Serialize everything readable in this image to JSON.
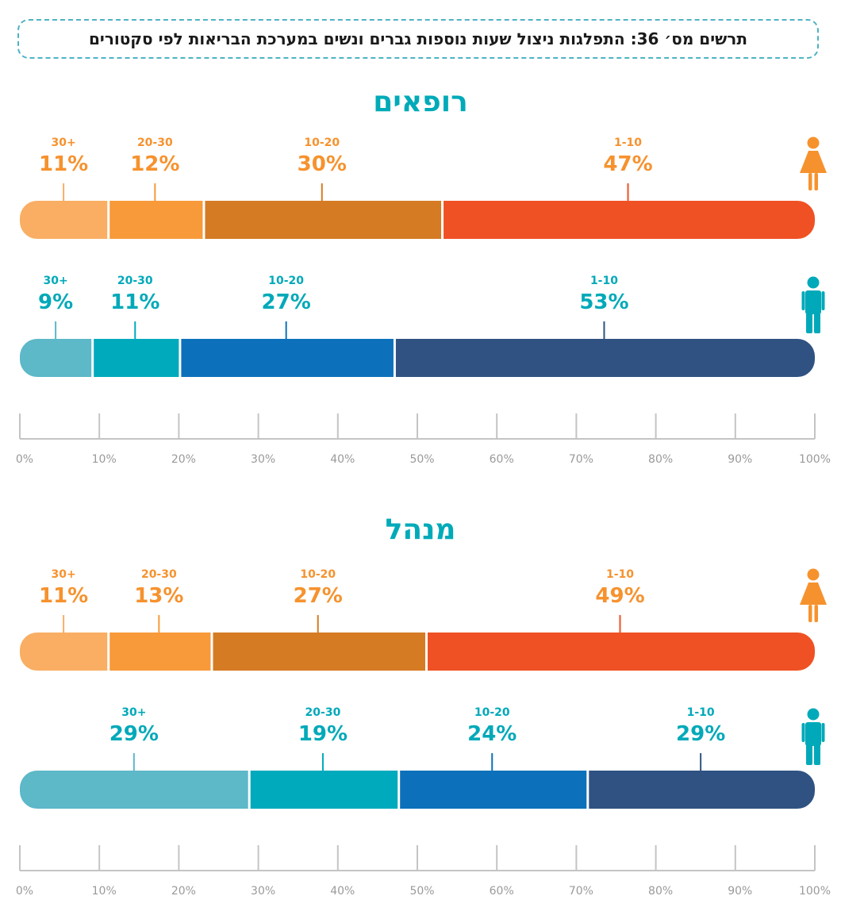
{
  "title": "תרשים מס׳ 36: התפלגות ניצול שעות נוספות גברים ונשים במערכת הבריאות לפי סקטורים",
  "colors": {
    "women": [
      "#ef5124",
      "#d57b24",
      "#f89a3a",
      "#f9ae63"
    ],
    "men": [
      "#2f5282",
      "#0c71ba",
      "#00aabd",
      "#5db8c8"
    ],
    "women_text": "#f6922e",
    "men_text": "#00a9b9",
    "axis": "#c4c4c4",
    "title_border": "#4fb3c4"
  },
  "chart_data": {
    "type": "bar",
    "orientation": "horizontal-stacked",
    "categories": [
      "1-10",
      "10-20",
      "20-30",
      "30+"
    ],
    "xlim": [
      0,
      100
    ],
    "x_tick_labels": [
      "0%",
      "10%",
      "20%",
      "30%",
      "40%",
      "50%",
      "60%",
      "70%",
      "80%",
      "90%",
      "100%"
    ],
    "grid": false,
    "sections": [
      {
        "title": "רופאים",
        "series": [
          {
            "group": "women",
            "icon": "woman-icon",
            "values": [
              47,
              30,
              12,
              11
            ],
            "value_labels": [
              "47%",
              "30%",
              "12%",
              "11%"
            ]
          },
          {
            "group": "men",
            "icon": "man-icon",
            "values": [
              53,
              27,
              11,
              9
            ],
            "value_labels": [
              "53%",
              "27%",
              "11%",
              "9%"
            ]
          }
        ]
      },
      {
        "title": "מנהל",
        "series": [
          {
            "group": "women",
            "icon": "woman-icon",
            "values": [
              49,
              27,
              13,
              11
            ],
            "value_labels": [
              "49%",
              "27%",
              "13%",
              "11%"
            ]
          },
          {
            "group": "men",
            "icon": "man-icon",
            "values": [
              29,
              24,
              19,
              29
            ],
            "value_labels": [
              "29%",
              "24%",
              "19%",
              "29%"
            ]
          }
        ]
      }
    ]
  }
}
